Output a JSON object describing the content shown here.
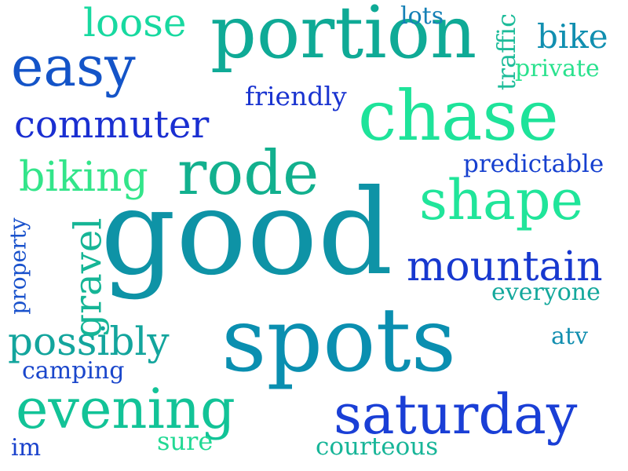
{
  "word_cloud": {
    "words": {
      "good": {
        "text": "good",
        "color": "#0e93a6"
      },
      "spots": {
        "text": "spots",
        "color": "#0a8fb0"
      },
      "portion": {
        "text": "portion",
        "color": "#0faa96"
      },
      "chase": {
        "text": "chase",
        "color": "#1ee39a"
      },
      "rode": {
        "text": "rode",
        "color": "#12b08e"
      },
      "shape": {
        "text": "shape",
        "color": "#20e59a"
      },
      "saturday": {
        "text": "saturday",
        "color": "#1a3fd6"
      },
      "evening": {
        "text": "evening",
        "color": "#12c397"
      },
      "easy": {
        "text": "easy",
        "color": "#1454c8"
      },
      "commuter": {
        "text": "commuter",
        "color": "#1a2fd1"
      },
      "loose": {
        "text": "loose",
        "color": "#18d9a0"
      },
      "mountain": {
        "text": "mountain",
        "color": "#1738cf"
      },
      "biking": {
        "text": "biking",
        "color": "#33e58a"
      },
      "possibly": {
        "text": "possibly",
        "color": "#13a59d"
      },
      "bike": {
        "text": "bike",
        "color": "#118fb0"
      },
      "gravel": {
        "text": "gravel",
        "color": "#16b596"
      },
      "traffic": {
        "text": "traffic",
        "color": "#1ebc9a"
      },
      "private": {
        "text": "private",
        "color": "#2ae28e"
      },
      "predictable": {
        "text": "predictable",
        "color": "#1640cf"
      },
      "friendly": {
        "text": "friendly",
        "color": "#1a34d0"
      },
      "everyone": {
        "text": "everyone",
        "color": "#14a89c"
      },
      "property": {
        "text": "property",
        "color": "#1a52cc"
      },
      "camping": {
        "text": "camping",
        "color": "#1a46cb"
      },
      "lots": {
        "text": "lots",
        "color": "#1580b6"
      },
      "atv": {
        "text": "atv",
        "color": "#138fb0"
      },
      "sure": {
        "text": "sure",
        "color": "#22d994"
      },
      "courteous": {
        "text": "courteous",
        "color": "#17b598"
      },
      "im": {
        "text": "im",
        "color": "#1a42cc"
      }
    }
  }
}
